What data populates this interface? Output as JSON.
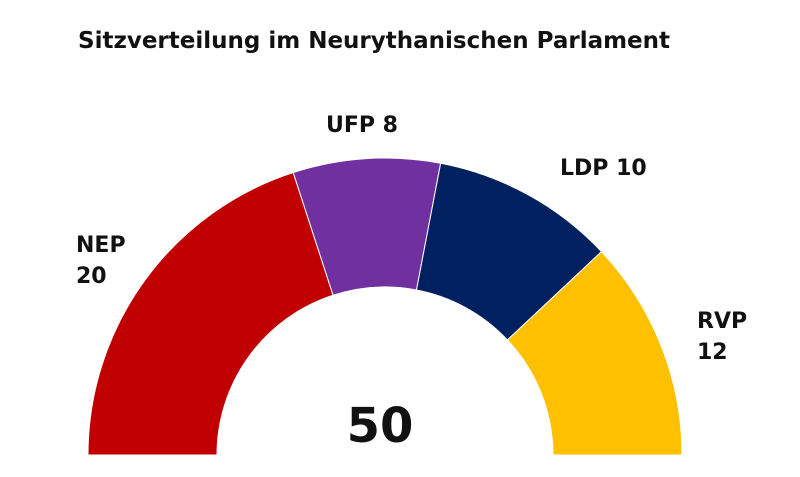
{
  "chart_data": {
    "type": "pie",
    "subtype": "half-donut parliament chart",
    "title": "Sitzverteilung im Neurythanischen Parlament",
    "total": "50",
    "slices": [
      {
        "name": "NEP",
        "value": 20,
        "color": "#C00000"
      },
      {
        "name": "UFP",
        "value": 8,
        "color": "#7030A0"
      },
      {
        "name": "LDP",
        "value": 10,
        "color": "#002060"
      },
      {
        "name": "RVP",
        "value": 12,
        "color": "#FFC000"
      }
    ]
  }
}
